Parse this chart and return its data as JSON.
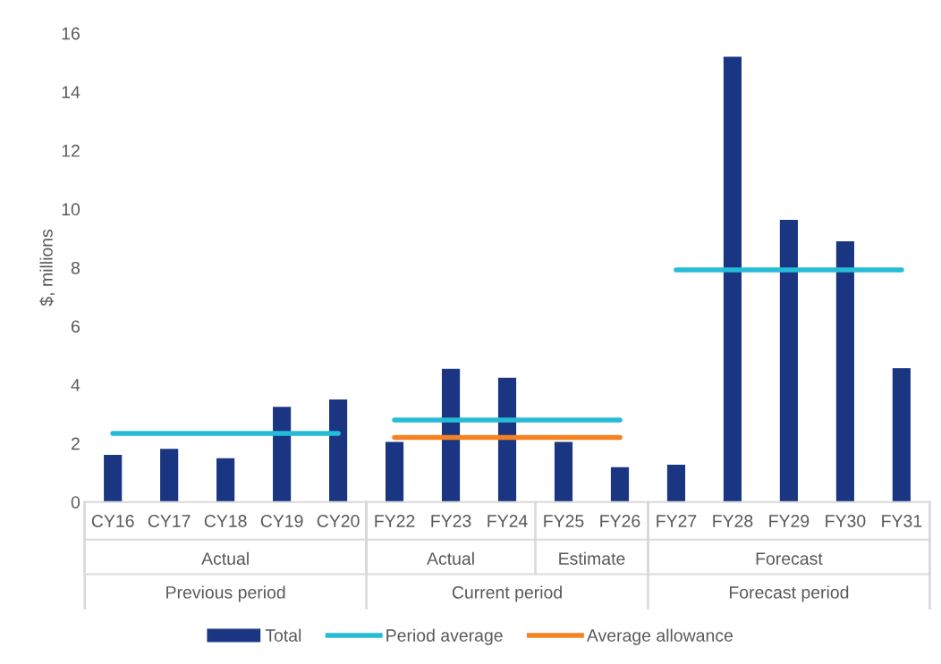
{
  "chart_data": {
    "type": "bar",
    "ylabel": "$, millions",
    "categories": [
      "CY16",
      "CY17",
      "CY18",
      "CY19",
      "CY20",
      "FY22",
      "FY23",
      "FY24",
      "FY25",
      "FY26",
      "FY27",
      "FY28",
      "FY29",
      "FY30",
      "FY31"
    ],
    "series": [
      {
        "name": "Total",
        "color": "#1a3683",
        "values": [
          1.61,
          1.81,
          1.49,
          3.25,
          3.5,
          2.05,
          4.54,
          4.24,
          2.05,
          1.19,
          1.27,
          15.2,
          9.63,
          8.9,
          4.57
        ]
      },
      {
        "name": "Period average",
        "type": "line",
        "color": "#26bcd7",
        "values": [
          2.34,
          2.34,
          2.34,
          2.34,
          2.34,
          null,
          null,
          null,
          null,
          null,
          null,
          null,
          null,
          null,
          null
        ]
      },
      {
        "type": "line",
        "color": "#26bcd7",
        "values": [
          null,
          null,
          null,
          null,
          null,
          2.8,
          2.8,
          2.8,
          2.8,
          2.8,
          null,
          null,
          null,
          null,
          null
        ]
      },
      {
        "type": "line",
        "color": "#26bcd7",
        "values": [
          null,
          null,
          null,
          null,
          null,
          null,
          null,
          null,
          null,
          null,
          7.92,
          7.92,
          7.92,
          7.92,
          7.92
        ]
      },
      {
        "name": "Average allowance",
        "type": "line",
        "color": "#f58220",
        "values": [
          null,
          null,
          null,
          null,
          null,
          2.2,
          2.2,
          2.2,
          2.2,
          2.2,
          null,
          null,
          null,
          null,
          null
        ]
      }
    ],
    "annotations": [
      "Actual",
      "Actual",
      "Estimate",
      "Forecast",
      "Previous period",
      "Current period",
      "Forecast period"
    ],
    "ylim": [
      0,
      16
    ],
    "yticks": [
      0,
      2,
      4,
      6,
      8,
      10,
      12,
      14,
      16
    ],
    "grid": false,
    "legend": "bottom",
    "marker": "none",
    "line_style": "solid"
  }
}
